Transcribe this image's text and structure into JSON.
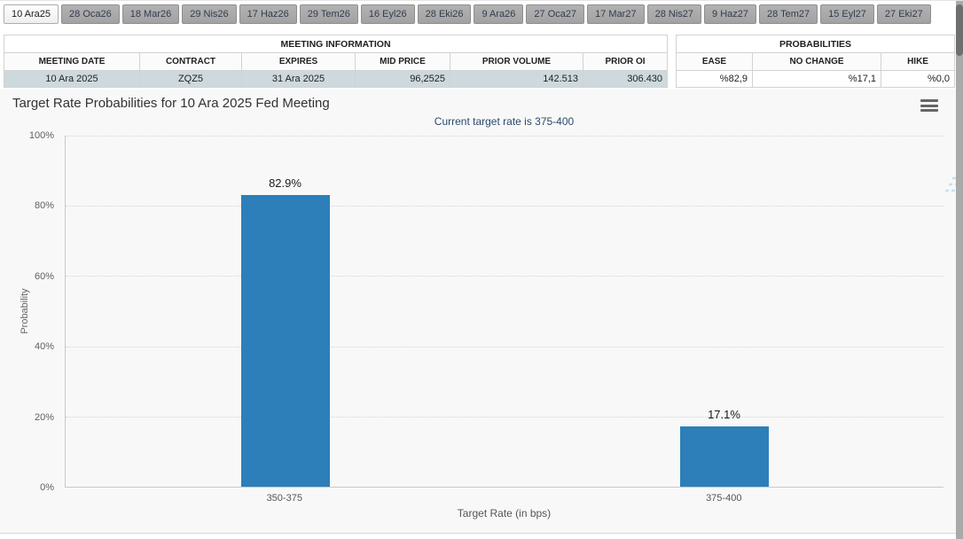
{
  "tab_bar": {
    "tabs": [
      {
        "label": "10 Ara25",
        "active": true
      },
      {
        "label": "28 Oca26",
        "active": false
      },
      {
        "label": "18 Mar26",
        "active": false
      },
      {
        "label": "29 Nis26",
        "active": false
      },
      {
        "label": "17 Haz26",
        "active": false
      },
      {
        "label": "29 Tem26",
        "active": false
      },
      {
        "label": "16 Eyl26",
        "active": false
      },
      {
        "label": "28 Eki26",
        "active": false
      },
      {
        "label": "9 Ara26",
        "active": false
      },
      {
        "label": "27 Oca27",
        "active": false
      },
      {
        "label": "17 Mar27",
        "active": false
      },
      {
        "label": "28 Nis27",
        "active": false
      },
      {
        "label": "9 Haz27",
        "active": false
      },
      {
        "label": "28 Tem27",
        "active": false
      },
      {
        "label": "15 Eyl27",
        "active": false
      },
      {
        "label": "27 Eki27",
        "active": false
      }
    ]
  },
  "meeting_info": {
    "title": "MEETING INFORMATION",
    "columns": [
      "MEETING DATE",
      "CONTRACT",
      "EXPIRES",
      "MID PRICE",
      "PRIOR VOLUME",
      "PRIOR OI"
    ],
    "row": [
      "10 Ara 2025",
      "ZQZ5",
      "31 Ara 2025",
      "96,2525",
      "142.513",
      "306.430"
    ]
  },
  "probabilities": {
    "title": "PROBABILITIES",
    "columns": [
      "EASE",
      "NO CHANGE",
      "HIKE"
    ],
    "row": [
      "%82,9",
      "%17,1",
      "%0,0"
    ]
  },
  "chart": {
    "watermark_letter": "Q"
  },
  "chart_data": {
    "type": "bar",
    "title": "Target Rate Probabilities for 10 Ara 2025 Fed Meeting",
    "subtitle": "Current target rate is 375-400",
    "categories": [
      "350-375",
      "375-400"
    ],
    "values": [
      82.9,
      17.1
    ],
    "value_labels": [
      "82.9%",
      "17.1%"
    ],
    "xlabel": "Target Rate (in bps)",
    "ylabel": "Probability",
    "ylim": [
      0,
      100
    ],
    "yticks": [
      "0%",
      "20%",
      "40%",
      "60%",
      "80%",
      "100%"
    ],
    "grid": "horizontal-dotted",
    "legend": "none",
    "bar_color": "#2c7fb8"
  },
  "colors": {
    "bar": "#2c7fb8",
    "selected_row": "#cdd9dd",
    "subtitle": "#2a4a6b",
    "inactive_tab": "#a7a7a7"
  }
}
